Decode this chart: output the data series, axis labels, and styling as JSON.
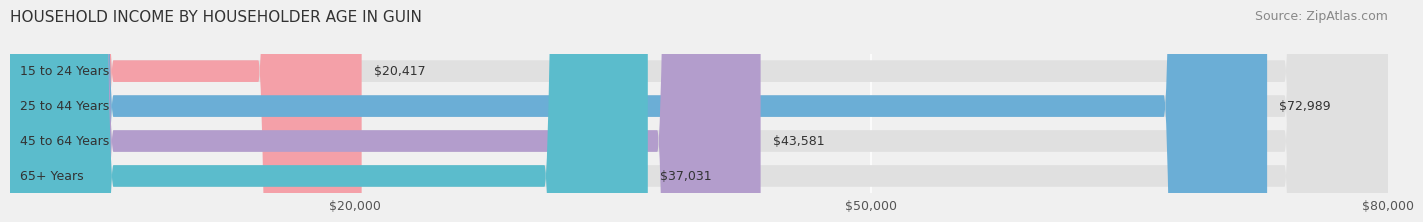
{
  "title": "HOUSEHOLD INCOME BY HOUSEHOLDER AGE IN GUIN",
  "source": "Source: ZipAtlas.com",
  "categories": [
    "15 to 24 Years",
    "25 to 44 Years",
    "45 to 64 Years",
    "65+ Years"
  ],
  "values": [
    20417,
    72989,
    43581,
    37031
  ],
  "bar_colors": [
    "#f4a0a8",
    "#6baed6",
    "#b39dcc",
    "#5bbccc"
  ],
  "value_labels": [
    "$20,417",
    "$72,989",
    "$43,581",
    "$37,031"
  ],
  "xlim": [
    0,
    80000
  ],
  "xticks": [
    20000,
    50000,
    80000
  ],
  "xtick_labels": [
    "$20,000",
    "$50,000",
    "$80,000"
  ],
  "background_color": "#f0f0f0",
  "bar_bg_color": "#e0e0e0",
  "title_fontsize": 11,
  "source_fontsize": 9,
  "tick_fontsize": 9,
  "label_fontsize": 9,
  "value_fontsize": 9,
  "bar_height": 0.62,
  "rounding_size": 6000
}
